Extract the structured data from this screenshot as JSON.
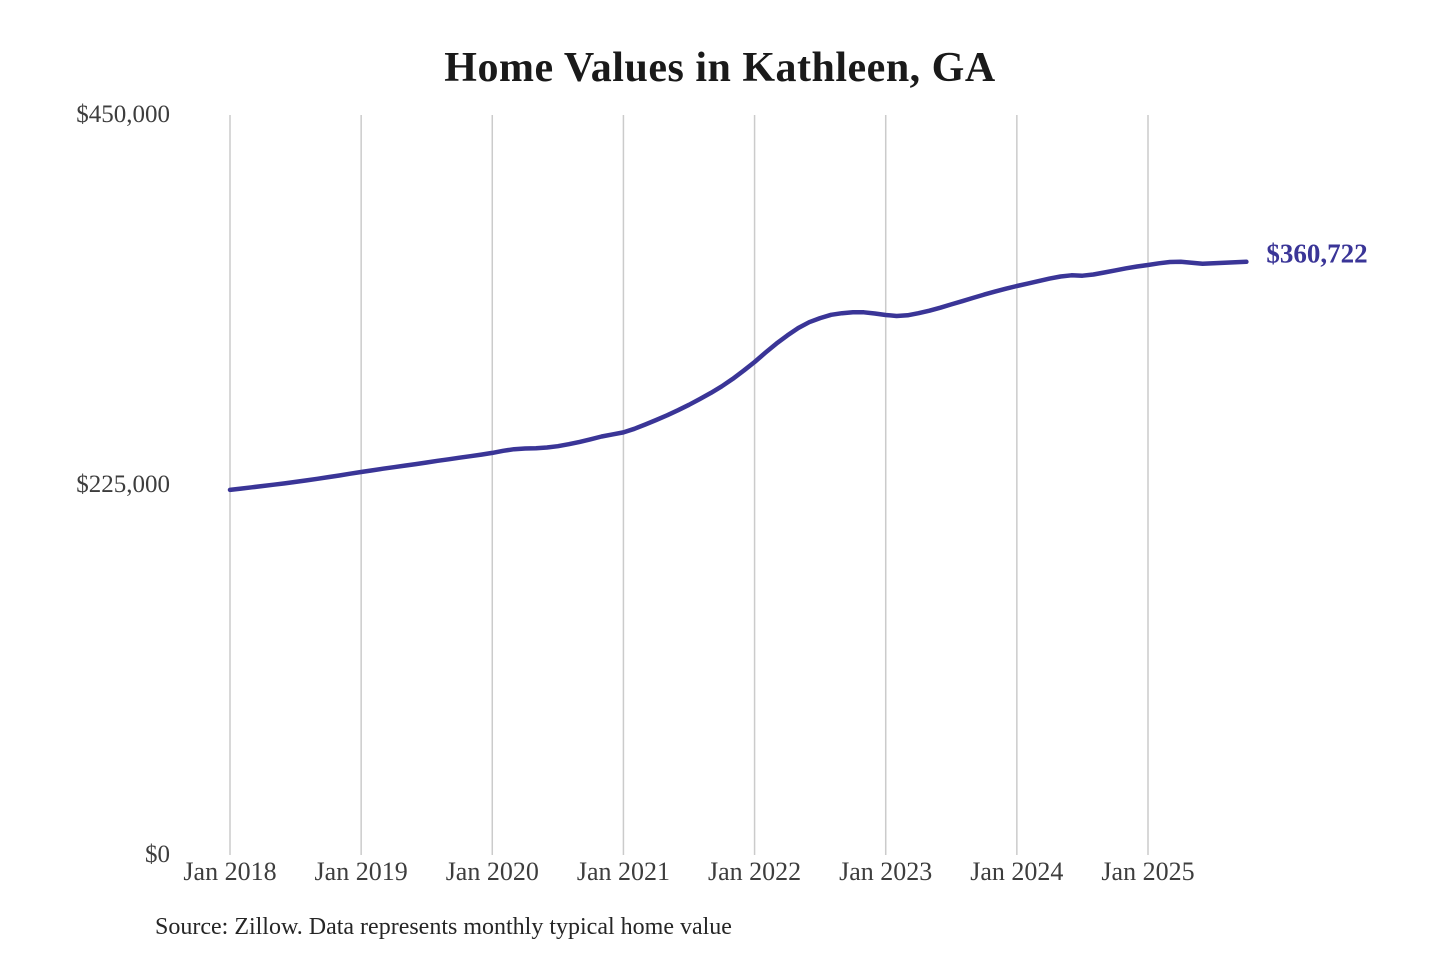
{
  "title": "Home Values in Kathleen, GA",
  "source_note": "Source: Zillow. Data represents monthly typical home value",
  "current_value_label": "$360,722",
  "colors": {
    "line": "#3a3597",
    "grid": "#cbcbcb",
    "tick_text": "#3d3d3d",
    "title_text": "#1a1a1a",
    "source_text": "#262626",
    "current_value_text": "#3a3597",
    "background": "#ffffff"
  },
  "chart_data": {
    "type": "line",
    "title": "Home Values in Kathleen, GA",
    "xlabel": "",
    "ylabel": "",
    "ylim": [
      0,
      450000
    ],
    "grid": "vertical-only",
    "legend": "none",
    "x_tick_labels": [
      "Jan 2018",
      "Jan 2019",
      "Jan 2020",
      "Jan 2021",
      "Jan 2022",
      "Jan 2023",
      "Jan 2024",
      "Jan 2025"
    ],
    "y_ticks": [
      {
        "value": 450000,
        "label": "$450,000"
      },
      {
        "value": 225000,
        "label": "$225,000"
      },
      {
        "value": 0,
        "label": "$0"
      }
    ],
    "series": [
      {
        "name": "Monthly typical home value (USD)",
        "start_month": "2018-01",
        "interval": "monthly",
        "end_value": 360722,
        "end_value_label": "$360,722",
        "values": [
          222000,
          222800,
          223600,
          224400,
          225200,
          226000,
          226900,
          227800,
          228800,
          229800,
          230800,
          231900,
          232900,
          233900,
          234900,
          235800,
          236800,
          237700,
          238700,
          239700,
          240600,
          241600,
          242500,
          243500,
          244500,
          245800,
          246800,
          247200,
          247400,
          247800,
          248600,
          249800,
          251200,
          252800,
          254500,
          255800,
          257000,
          259200,
          261800,
          264500,
          267400,
          270500,
          273800,
          277300,
          281000,
          285000,
          289500,
          294500,
          299800,
          305500,
          311000,
          316000,
          320500,
          324000,
          326500,
          328500,
          329500,
          330000,
          330000,
          329300,
          328400,
          327800,
          328200,
          329500,
          331000,
          332800,
          334800,
          336800,
          338800,
          340800,
          342600,
          344400,
          346000,
          347500,
          349000,
          350500,
          351800,
          352500,
          352300,
          353000,
          354200,
          355500,
          356800,
          357900,
          358800,
          359800,
          360600,
          360700,
          360200,
          359600,
          359800,
          360200,
          360500,
          360722
        ]
      }
    ]
  }
}
